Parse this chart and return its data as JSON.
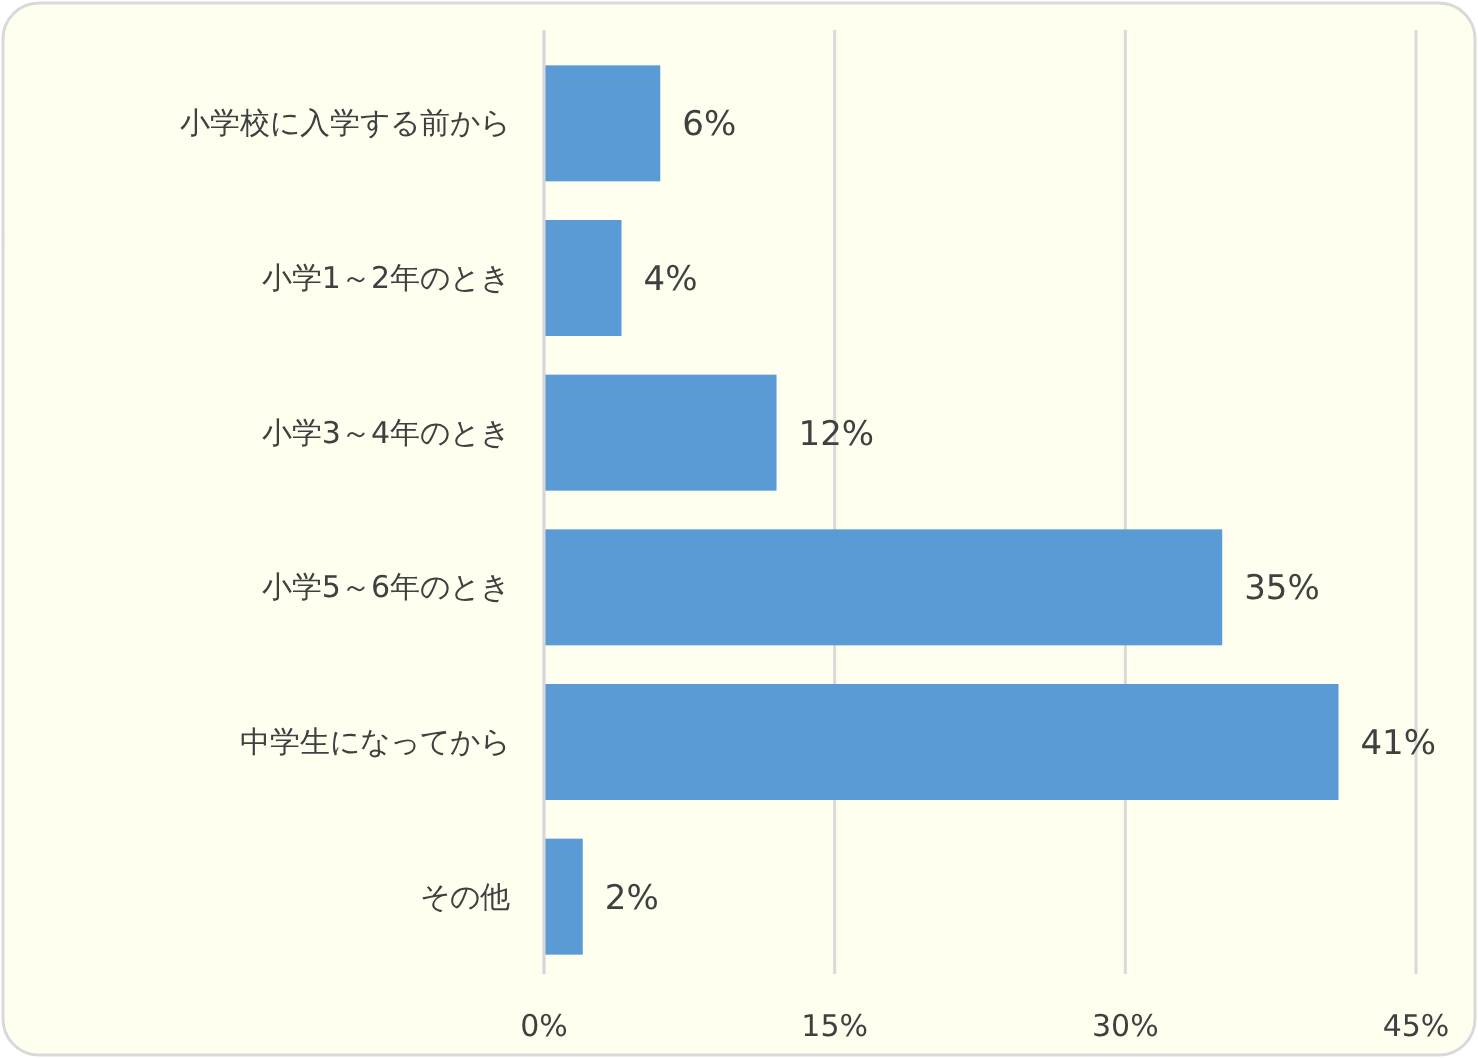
{
  "chart_data": {
    "type": "bar",
    "orientation": "horizontal",
    "categories": [
      "小学校に入学する前から",
      "小学1～2年のとき",
      "小学3～4年のとき",
      "小学5～6年のとき",
      "中学生になってから",
      "その他"
    ],
    "values": [
      6,
      4,
      12,
      35,
      41,
      2
    ],
    "value_labels": [
      "6%",
      "4%",
      "12%",
      "35%",
      "41%",
      "2%"
    ],
    "color": "#5b9bd5",
    "xlim": [
      0,
      45
    ],
    "xticks": [
      {
        "value": 0,
        "label": "0%"
      },
      {
        "value": 15,
        "label": "15%"
      },
      {
        "value": 30,
        "label": "30%"
      },
      {
        "value": 45,
        "label": "45%"
      }
    ],
    "grid": "x"
  }
}
